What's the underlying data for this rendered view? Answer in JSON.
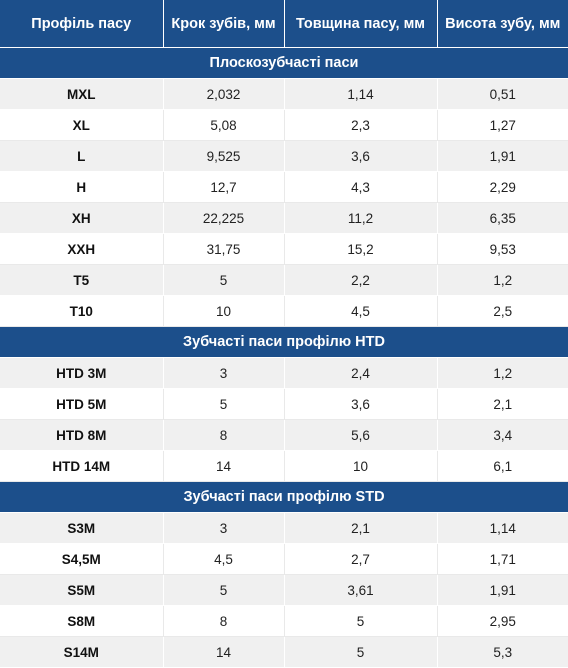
{
  "table": {
    "headers": [
      "Профіль пасу",
      "Крок зубів, мм",
      "Товщина пасу, мм",
      "Висота зубу, мм"
    ],
    "sections": [
      {
        "title": "Плоскозубчасті паси",
        "rows": [
          [
            "MXL",
            "2,032",
            "1,14",
            "0,51"
          ],
          [
            "XL",
            "5,08",
            "2,3",
            "1,27"
          ],
          [
            "L",
            "9,525",
            "3,6",
            "1,91"
          ],
          [
            "H",
            "12,7",
            "4,3",
            "2,29"
          ],
          [
            "XH",
            "22,225",
            "11,2",
            "6,35"
          ],
          [
            "XXH",
            "31,75",
            "15,2",
            "9,53"
          ],
          [
            "T5",
            "5",
            "2,2",
            "1,2"
          ],
          [
            "T10",
            "10",
            "4,5",
            "2,5"
          ]
        ]
      },
      {
        "title": "Зубчасті паси профілю HTD",
        "rows": [
          [
            "HTD 3M",
            "3",
            "2,4",
            "1,2"
          ],
          [
            "HTD 5M",
            "5",
            "3,6",
            "2,1"
          ],
          [
            "HTD 8M",
            "8",
            "5,6",
            "3,4"
          ],
          [
            "HTD 14M",
            "14",
            "10",
            "6,1"
          ]
        ]
      },
      {
        "title": "Зубчасті паси профілю STD",
        "rows": [
          [
            "S3M",
            "3",
            "2,1",
            "1,14"
          ],
          [
            "S4,5M",
            "4,5",
            "2,7",
            "1,71"
          ],
          [
            "S5M",
            "5",
            "3,61",
            "1,91"
          ],
          [
            "S8M",
            "8",
            "5",
            "2,95"
          ],
          [
            "S14M",
            "14",
            "5",
            "5,3"
          ]
        ]
      }
    ]
  },
  "colors": {
    "header_bg": "#1c4f8b",
    "row_alt_bg": "#f0f0f0",
    "row_bg": "#ffffff"
  }
}
